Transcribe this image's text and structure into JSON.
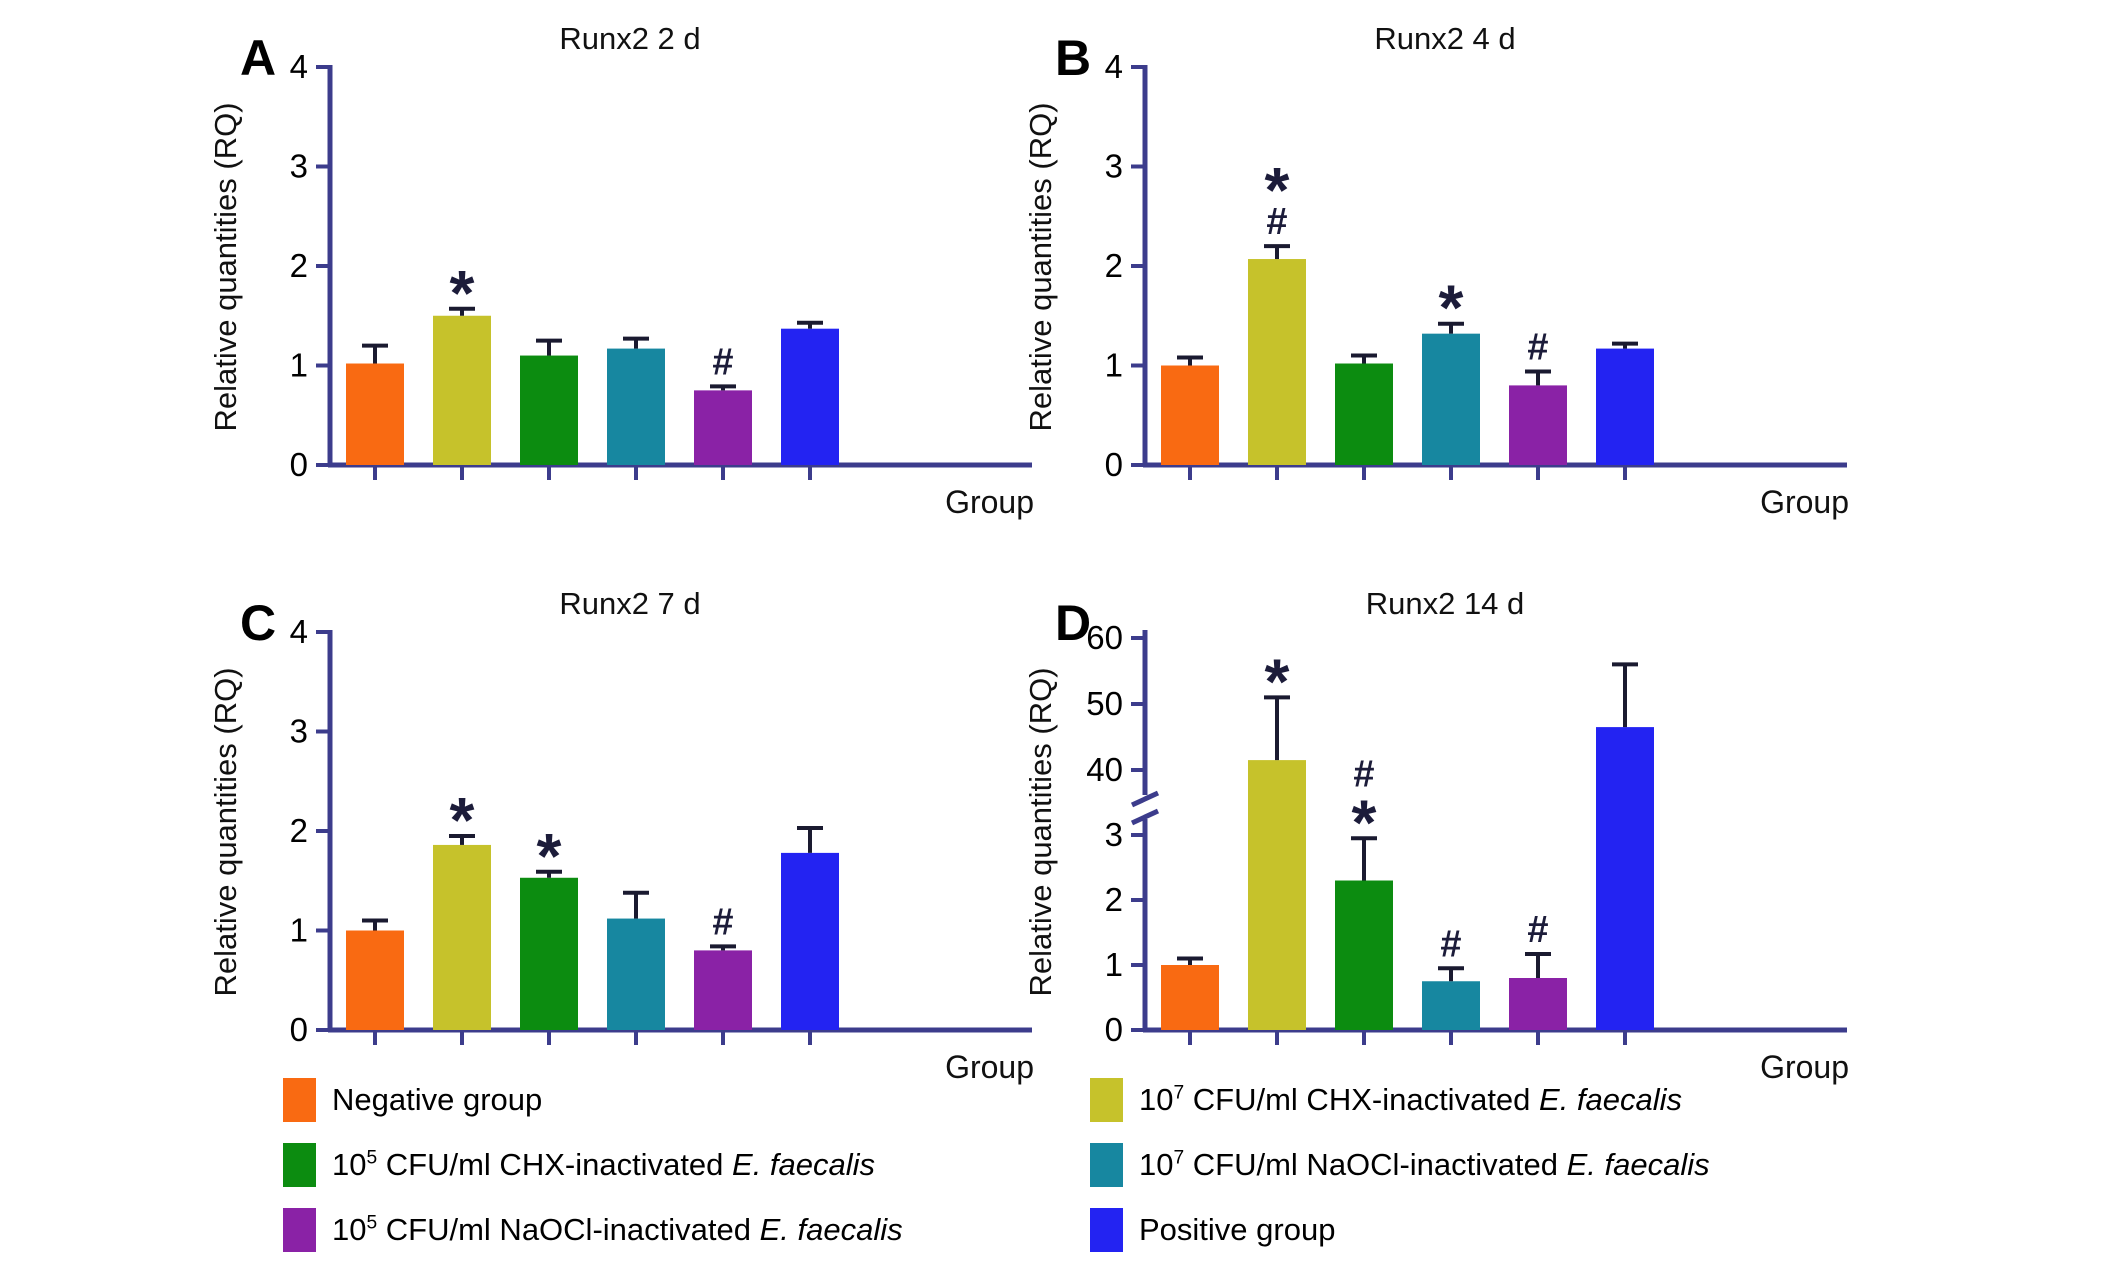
{
  "figure": {
    "background": "#ffffff",
    "x_axis_label": "Group",
    "y_axis_label": "Relative quantities (RQ)"
  },
  "colors": {
    "axis": "#3C3C8C",
    "error": "#1A1A30",
    "sig": "#1C1C3A",
    "text": "#000000",
    "bars": {
      "negative": "#F96A12",
      "chx7": "#C6C22B",
      "chx5": "#0C8C10",
      "naocl7": "#1787A0",
      "naocl5": "#8A22A6",
      "positive": "#2323F2"
    }
  },
  "chart_data": [
    {
      "id": "A",
      "type": "bar",
      "panel_label": "A",
      "title": "Runx2 2 d",
      "xlabel": "Group",
      "ylabel": "Relative quantities (RQ)",
      "ylim": [
        0,
        4
      ],
      "yticks": [
        0,
        1,
        2,
        3,
        4
      ],
      "grid": false,
      "categories": [
        "Negative group",
        "10^7 CFU/ml CHX-inactivated E. faecalis",
        "10^5 CFU/ml CHX-inactivated E. faecalis",
        "10^7 CFU/ml NaOCl-inactivated E. faecalis",
        "10^5 CFU/ml NaOCl-inactivated E. faecalis",
        "Positive group"
      ],
      "series_keys": [
        "negative",
        "chx7",
        "chx5",
        "naocl7",
        "naocl5",
        "positive"
      ],
      "values": [
        1.02,
        1.5,
        1.1,
        1.17,
        0.75,
        1.37
      ],
      "errors": [
        0.18,
        0.07,
        0.15,
        0.1,
        0.04,
        0.06
      ],
      "sig": [
        [],
        [
          "*"
        ],
        [],
        [],
        [
          "#"
        ],
        []
      ]
    },
    {
      "id": "B",
      "type": "bar",
      "panel_label": "B",
      "title": "Runx2 4 d",
      "xlabel": "Group",
      "ylabel": "Relative quantities (RQ)",
      "ylim": [
        0,
        4
      ],
      "yticks": [
        0,
        1,
        2,
        3,
        4
      ],
      "grid": false,
      "categories": [
        "Negative group",
        "10^7 CFU/ml CHX-inactivated E. faecalis",
        "10^5 CFU/ml CHX-inactivated E. faecalis",
        "10^7 CFU/ml NaOCl-inactivated E. faecalis",
        "10^5 CFU/ml NaOCl-inactivated E. faecalis",
        "Positive group"
      ],
      "series_keys": [
        "negative",
        "chx7",
        "chx5",
        "naocl7",
        "naocl5",
        "positive"
      ],
      "values": [
        1.0,
        2.07,
        1.02,
        1.32,
        0.8,
        1.17
      ],
      "errors": [
        0.08,
        0.13,
        0.08,
        0.1,
        0.14,
        0.05
      ],
      "sig": [
        [],
        [
          "*",
          "#"
        ],
        [],
        [
          "*"
        ],
        [
          "#"
        ],
        []
      ]
    },
    {
      "id": "C",
      "type": "bar",
      "panel_label": "C",
      "title": "Runx2 7 d",
      "xlabel": "Group",
      "ylabel": "Relative quantities (RQ)",
      "ylim": [
        0,
        4
      ],
      "yticks": [
        0,
        1,
        2,
        3,
        4
      ],
      "grid": false,
      "categories": [
        "Negative group",
        "10^7 CFU/ml CHX-inactivated E. faecalis",
        "10^5 CFU/ml CHX-inactivated E. faecalis",
        "10^7 CFU/ml NaOCl-inactivated E. faecalis",
        "10^5 CFU/ml NaOCl-inactivated E. faecalis",
        "Positive group"
      ],
      "series_keys": [
        "negative",
        "chx7",
        "chx5",
        "naocl7",
        "naocl5",
        "positive"
      ],
      "values": [
        1.0,
        1.86,
        1.53,
        1.12,
        0.8,
        1.78
      ],
      "errors": [
        0.1,
        0.09,
        0.06,
        0.26,
        0.04,
        0.25
      ],
      "sig": [
        [],
        [
          "*"
        ],
        [
          "*"
        ],
        [],
        [
          "#"
        ],
        []
      ]
    },
    {
      "id": "D",
      "type": "bar",
      "panel_label": "D",
      "title": "Runx2 14 d",
      "xlabel": "Group",
      "ylabel": "Relative quantities (RQ)",
      "axis_break": true,
      "segments": [
        {
          "lim": [
            0,
            3
          ],
          "ticks": [
            0,
            1,
            2,
            3
          ]
        },
        {
          "lim": [
            40,
            60
          ],
          "ticks": [
            40,
            50,
            60
          ]
        }
      ],
      "grid": false,
      "categories": [
        "Negative group",
        "10^7 CFU/ml CHX-inactivated E. faecalis",
        "10^5 CFU/ml CHX-inactivated E. faecalis",
        "10^7 CFU/ml NaOCl-inactivated E. faecalis",
        "10^5 CFU/ml NaOCl-inactivated E. faecalis",
        "Positive group"
      ],
      "series_keys": [
        "negative",
        "chx7",
        "chx5",
        "naocl7",
        "naocl5",
        "positive"
      ],
      "values": [
        1.0,
        41.5,
        2.3,
        0.75,
        0.8,
        46.5
      ],
      "errors": [
        0.1,
        9.5,
        0.65,
        0.2,
        0.37,
        9.5
      ],
      "sig": [
        [],
        [
          "*"
        ],
        [
          "#",
          "*"
        ],
        [
          "#"
        ],
        [
          "#"
        ],
        []
      ]
    }
  ],
  "legend": {
    "columns": [
      {
        "items": [
          {
            "color_key": "negative",
            "parts": [
              {
                "t": "Negative group"
              }
            ]
          },
          {
            "color_key": "chx5",
            "parts": [
              {
                "t": "10"
              },
              {
                "t": "5",
                "sup": true
              },
              {
                "t": " CFU/ml CHX-inactivated "
              },
              {
                "t": "E. faecalis",
                "italic": true
              }
            ]
          },
          {
            "color_key": "naocl5",
            "parts": [
              {
                "t": "10"
              },
              {
                "t": "5",
                "sup": true
              },
              {
                "t": " CFU/ml NaOCl-inactivated "
              },
              {
                "t": "E. faecalis",
                "italic": true
              }
            ]
          }
        ]
      },
      {
        "items": [
          {
            "color_key": "chx7",
            "parts": [
              {
                "t": "10"
              },
              {
                "t": "7",
                "sup": true
              },
              {
                "t": " CFU/ml CHX-inactivated "
              },
              {
                "t": "E. faecalis",
                "italic": true
              }
            ]
          },
          {
            "color_key": "naocl7",
            "parts": [
              {
                "t": "10"
              },
              {
                "t": "7",
                "sup": true
              },
              {
                "t": " CFU/ml NaOCl-inactivated "
              },
              {
                "t": "E. faecalis",
                "italic": true
              }
            ]
          },
          {
            "color_key": "positive",
            "parts": [
              {
                "t": "Positive group"
              }
            ]
          }
        ]
      }
    ]
  }
}
